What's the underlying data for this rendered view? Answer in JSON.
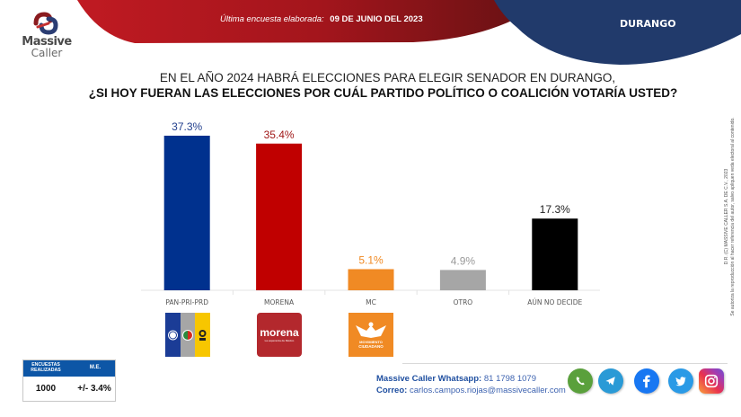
{
  "brand": {
    "name_line1": "Massive",
    "name_line2": "Caller",
    "colors": {
      "header_red": "#a8141c",
      "header_red_dark": "#6e1214",
      "region_blue": "#213a6b"
    }
  },
  "header": {
    "survey_label": "Última encuesta elaborada:",
    "survey_date": "09 DE JUNIO DEL 2023",
    "region": "DURANGO"
  },
  "question": {
    "line1": "EN EL AÑO 2024 HABRÁ ELECCIONES PARA ELEGIR SENADOR EN DURANGO,",
    "line2": "¿SI HOY FUERAN LAS ELECCIONES POR CUÁL PARTIDO POLÍTICO O COALICIÓN  VOTARÍA USTED?"
  },
  "chart_data": {
    "type": "bar",
    "title": "¿SI HOY FUERAN LAS ELECCIONES POR CUÁL PARTIDO POLÍTICO O COALICIÓN VOTARÍA USTED?",
    "xlabel": "",
    "ylabel": "",
    "categories": [
      "PAN-PRI-PRD",
      "MORENA",
      "MC",
      "OTRO",
      "AÚN NO DECIDE"
    ],
    "values": [
      37.3,
      35.4,
      5.1,
      4.9,
      17.3
    ],
    "value_labels": [
      "37.3%",
      "35.4%",
      "5.1%",
      "4.9%",
      "17.3%"
    ],
    "colors": [
      "#00318e",
      "#c00000",
      "#f08a24",
      "#a6a6a6",
      "#000000"
    ],
    "label_colors": [
      "#23408e",
      "#a01818",
      "#f08a24",
      "#9a9a9a",
      "#222222"
    ],
    "ylim": [
      0,
      40
    ],
    "grid": false,
    "legend": "none"
  },
  "party_logos": [
    {
      "name": "pan-pri-prd-logo",
      "text": "PAN PRI PRD"
    },
    {
      "name": "morena-logo",
      "text": "morena",
      "subtext": "La esperanza de México"
    },
    {
      "name": "mc-logo",
      "text": "MOVIMIENTO",
      "text2": "CIUDADANO"
    }
  ],
  "stats": {
    "surveys_label": "ENCUESTAS REALIZADAS",
    "surveys_value": "1000",
    "me_label": "M.E.",
    "me_value": "+/- 3.4%"
  },
  "contact": {
    "whatsapp_label": "Massive Caller Whatsapp:",
    "whatsapp_value": "81 1798 1079",
    "email_label": "Correo:",
    "email_value": "carlos.campos.riojas@massivecaller.com"
  },
  "social": [
    "whatsapp-icon",
    "telegram-icon",
    "facebook-icon",
    "twitter-icon",
    "instagram-icon"
  ],
  "copyright": {
    "line1": "D.R. (C) MASSIVE CALLER S.A. DE C.V., 2023",
    "line2": "Se autoriza la reproducción al hacer referencia del autor, salvo apliquen veda electoral al contenido."
  }
}
